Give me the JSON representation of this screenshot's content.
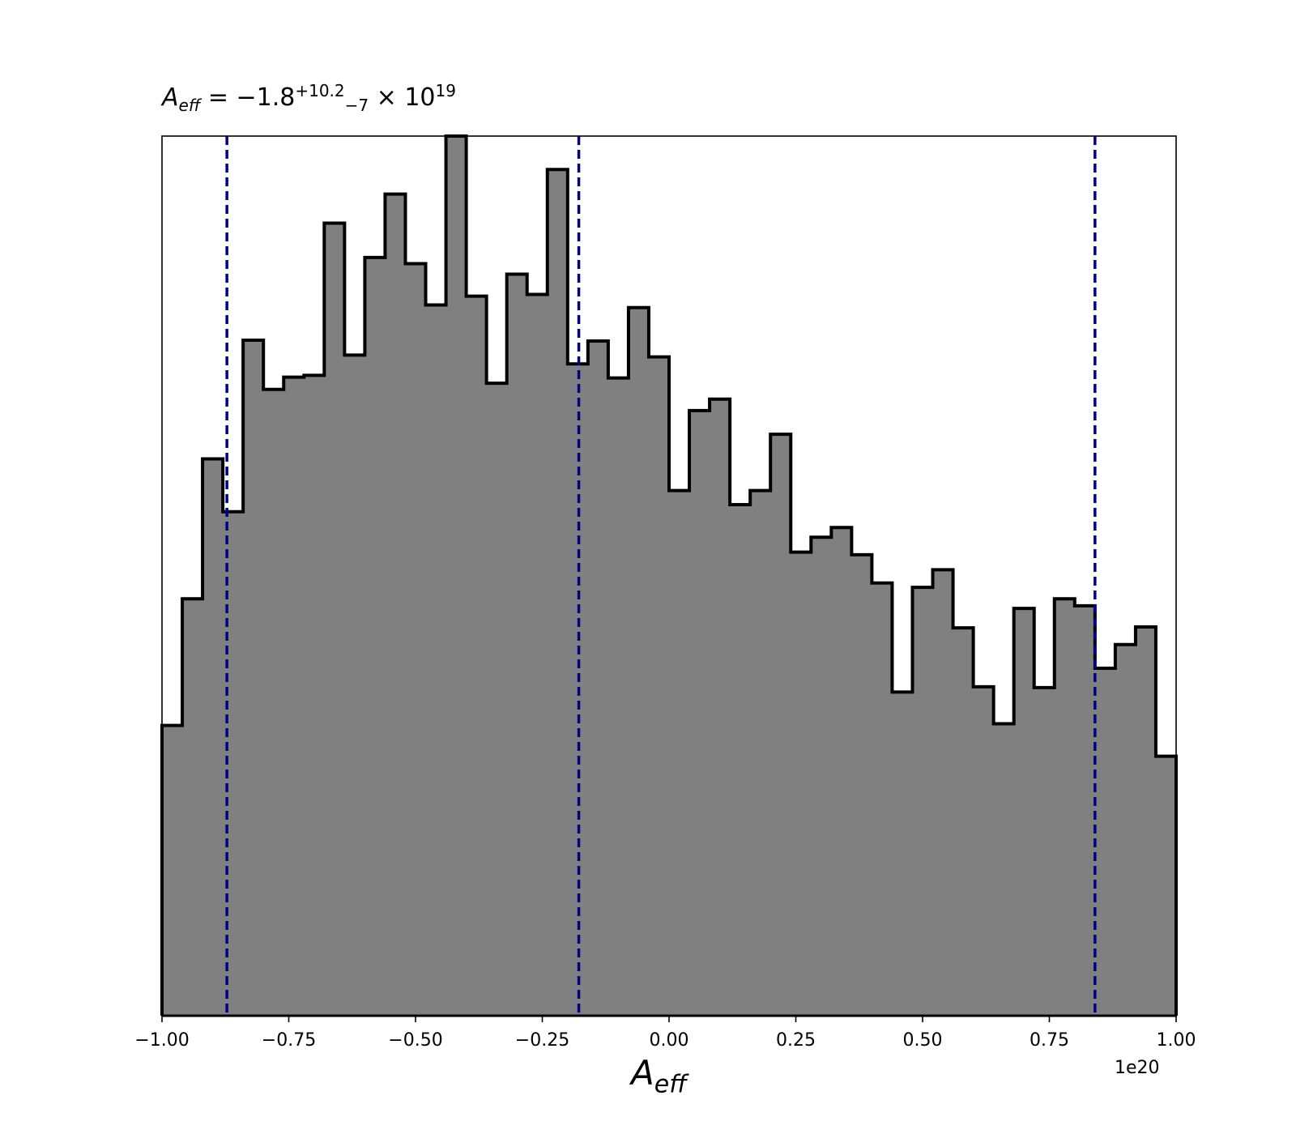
{
  "title": {
    "var": "A",
    "var_sub": "eff",
    "eq": " = −1.8",
    "sup": "+10.2",
    "sub": "−7",
    "times": " × 10",
    "exp": "19"
  },
  "xlabel": {
    "var": "A",
    "sub": "eff"
  },
  "offset_text": "1e20",
  "colors": {
    "fill": "#808080",
    "edge": "#000000",
    "vline": "#000080"
  },
  "chart_data": {
    "type": "bar",
    "histogram": true,
    "xlim": [
      -1.0,
      1.0
    ],
    "ylim": [
      0,
      1.0
    ],
    "grid": false,
    "x_scale_note": "1e20",
    "xticks": [
      -1.0,
      -0.75,
      -0.5,
      -0.25,
      0.0,
      0.25,
      0.5,
      0.75,
      1.0
    ],
    "xtick_labels": [
      "−1.00",
      "−0.75",
      "−0.50",
      "−0.25",
      "0.00",
      "0.25",
      "0.50",
      "0.75",
      "1.00"
    ],
    "bin_edges": [
      -1.0,
      -0.96,
      -0.92,
      -0.88,
      -0.84,
      -0.8,
      -0.76,
      -0.72,
      -0.68,
      -0.64,
      -0.6,
      -0.56,
      -0.52,
      -0.48,
      -0.44,
      -0.4,
      -0.36,
      -0.32,
      -0.28,
      -0.24,
      -0.2,
      -0.16,
      -0.12,
      -0.08,
      -0.04,
      0.0,
      0.04,
      0.08,
      0.12,
      0.16,
      0.2,
      0.24,
      0.28,
      0.32,
      0.36,
      0.4,
      0.44,
      0.48,
      0.52,
      0.56,
      0.6,
      0.64,
      0.68,
      0.72,
      0.76,
      0.8,
      0.84,
      0.88,
      0.92,
      0.96,
      1.0
    ],
    "values": [
      0.33,
      0.474,
      0.633,
      0.573,
      0.768,
      0.712,
      0.726,
      0.728,
      0.901,
      0.751,
      0.862,
      0.934,
      0.855,
      0.808,
      1.0,
      0.818,
      0.719,
      0.843,
      0.82,
      0.962,
      0.741,
      0.767,
      0.725,
      0.805,
      0.749,
      0.597,
      0.688,
      0.701,
      0.581,
      0.597,
      0.661,
      0.527,
      0.544,
      0.555,
      0.524,
      0.492,
      0.368,
      0.487,
      0.507,
      0.441,
      0.374,
      0.332,
      0.463,
      0.373,
      0.474,
      0.466,
      0.395,
      0.422,
      0.442,
      0.295
    ],
    "vlines": [
      -0.872,
      -0.178,
      0.84
    ]
  }
}
